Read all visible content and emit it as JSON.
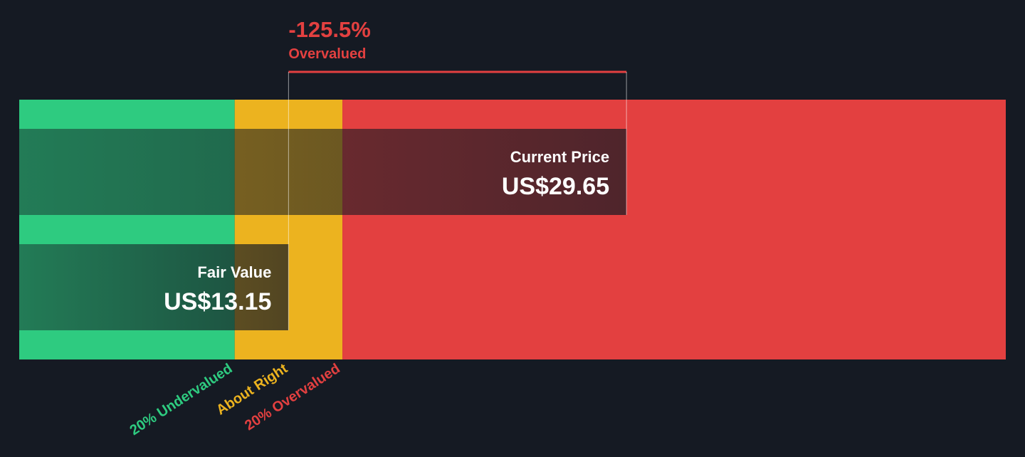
{
  "headline": {
    "percent": "-125.5%",
    "label": "Overvalued"
  },
  "current_price": {
    "label": "Current Price",
    "value": "US$29.65"
  },
  "fair_value": {
    "label": "Fair Value",
    "value": "US$13.15"
  },
  "zones": {
    "undervalued": "20% Undervalued",
    "about_right": "About Right",
    "overvalued": "20% Overvalued"
  },
  "colors": {
    "background": "#151a23",
    "green": "#2ecb80",
    "yellow": "#ecb31f",
    "red": "#e34040",
    "dark_green": "#1e5c45",
    "dark_red": "#5b2830",
    "white": "#ffffff"
  },
  "chart_data": {
    "type": "bar",
    "bars": [
      {
        "label": "Current Price",
        "value": 29.65
      },
      {
        "label": "Fair Value",
        "value": 13.15
      }
    ],
    "zone_bounds": {
      "undervalued_max": 10.52,
      "about_right_max": 15.78,
      "axis_max": 48.17
    },
    "difference_percent": -125.5
  }
}
